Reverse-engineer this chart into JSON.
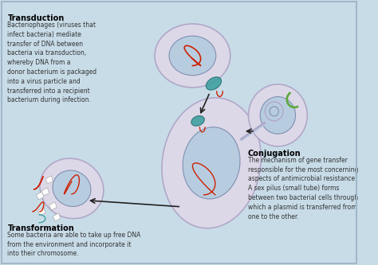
{
  "bg_color": "#c8dce8",
  "border_color": "#a0b8c8",
  "fig_width": 4.74,
  "fig_height": 3.33,
  "dpi": 100,
  "transduction_title": "Transduction",
  "transduction_text": "Bacteriophages (viruses that\ninfect bacteria) mediate\ntransfer of DNA between\nbacteria via transduction,\nwhereby DNA from a\ndonor bacterium is packaged\ninto a virus particle and\ntransferred into a recipient\nbacterium during infection.",
  "transformation_title": "Transformation",
  "transformation_text": "Some bacteria are able to take up free DNA\nfrom the environment and incorporate it\ninto their chromosome.",
  "conjugation_title": "Conjugation",
  "conjugation_text": "The mechanism of gene transfer\nresponsible for the most concerning\naspects of antimicrobial resistance.\nA sex pilus (small tube) forms\nbetween two bacterial cells through\nwhich a plasmid is transferred from\none to the other.",
  "cell_fill": "#ddd8e8",
  "cell_edge": "#b0a8c8",
  "inner_fill": "#b8cce0",
  "inner_edge": "#8090b0",
  "red_dna": "#cc2200",
  "teal_phage": "#40a0a0",
  "green_plasmid": "#60a840",
  "arrow_color": "#222222"
}
